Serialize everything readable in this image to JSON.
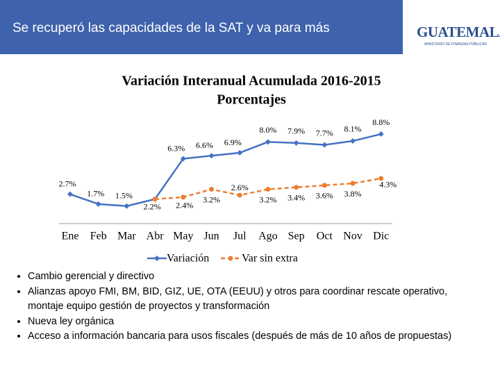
{
  "header": {
    "title": "Se recuperó las capacidades de la SAT y va para más",
    "logo": "GUATEMALA",
    "logo_subtitle": "MINISTERIO DE FINANZAS PÚBLICAS"
  },
  "chart_data": {
    "type": "line",
    "title": "Variación Interanual Acumulada 2016-2015",
    "subtitle": "Porcentajes",
    "categories": [
      "Ene",
      "Feb",
      "Mar",
      "Abr",
      "May",
      "Jun",
      "Jul",
      "Ago",
      "Sep",
      "Oct",
      "Nov",
      "Dic"
    ],
    "ylim": [
      0,
      10
    ],
    "series": [
      {
        "name": "Variación",
        "color": "#4472c4",
        "values": [
          2.7,
          1.7,
          1.5,
          2.2,
          6.3,
          6.6,
          6.9,
          8.0,
          7.9,
          7.7,
          8.1,
          8.8
        ],
        "value_labels": [
          "2.7%",
          "1.7%",
          "1.5%",
          "2.2%",
          "6.3%",
          "6.6%",
          "6.9%",
          "8.0%",
          "7.9%",
          "7.7%",
          "8.1%",
          "8.8%"
        ]
      },
      {
        "name": "Var sin extra",
        "color": "#ed7d31",
        "values": [
          null,
          null,
          null,
          2.2,
          2.4,
          3.2,
          2.6,
          3.2,
          3.4,
          3.6,
          3.8,
          4.3
        ],
        "value_labels": [
          null,
          null,
          null,
          null,
          "2.4%",
          "3.2%",
          "2.6%",
          "3.2%",
          "3.4%",
          "3.6%",
          "3.8%",
          "4.3%"
        ]
      }
    ]
  },
  "bullets": [
    "Cambio gerencial y directivo",
    "Alianzas apoyo FMI, BM, BID, GIZ, UE, OTA (EEUU) y otros para coordinar rescate operativo, montaje equipo gestión de proyectos y transformación",
    "Nueva ley orgánica",
    "Acceso a información bancaria para usos fiscales (después de más de 10 años de propuestas)"
  ]
}
